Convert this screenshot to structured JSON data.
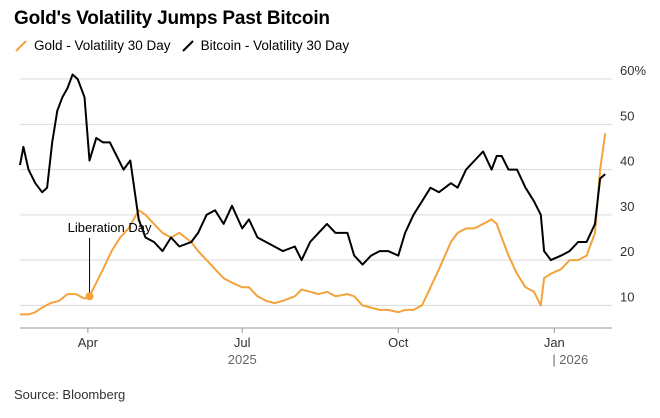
{
  "title": "Gold's Volatility Jumps Past Bitcoin",
  "source": "Source: Bloomberg",
  "colors": {
    "gold": "#f3a23c",
    "bitcoin": "#000000",
    "grid": "#d9d9d9"
  },
  "legend": [
    {
      "label": "Gold - Volatility 30 Day",
      "color": "#f3a23c"
    },
    {
      "label": "Bitcoin - Volatility 30 Day",
      "color": "#000000"
    }
  ],
  "chart_data": {
    "type": "line",
    "title": "Gold's Volatility Jumps Past Bitcoin",
    "xlabel": "",
    "ylabel": "",
    "x_range": [
      "2025-02-20",
      "2026-02-04"
    ],
    "ylim": [
      5,
      62
    ],
    "y_ticks": [
      10,
      20,
      30,
      40,
      50,
      60
    ],
    "y_tick_labels": [
      "10",
      "20",
      "30",
      "40",
      "50",
      "60%"
    ],
    "y_axis_position": "right",
    "grid": "horizontal",
    "legend_position": "top-left",
    "x_ticks": [
      {
        "date": "2025-04-01",
        "label": "Apr"
      },
      {
        "date": "2025-07-01",
        "label": "Jul"
      },
      {
        "date": "2025-10-01",
        "label": "Oct"
      },
      {
        "date": "2026-01-01",
        "label": "Jan"
      }
    ],
    "year_labels": [
      {
        "date": "2025-07-01",
        "label": "2025"
      },
      {
        "date": "2026-01-01",
        "label": "| 2026"
      }
    ],
    "annotations": [
      {
        "text": "Liberation Day",
        "x": "2025-04-02",
        "y": 12
      }
    ],
    "series": [
      {
        "name": "Gold - Volatility 30 Day",
        "color": "#f3a23c",
        "points": [
          [
            "2025-02-20",
            8
          ],
          [
            "2025-02-25",
            8
          ],
          [
            "2025-03-01",
            8.5
          ],
          [
            "2025-03-05",
            9.5
          ],
          [
            "2025-03-10",
            10.5
          ],
          [
            "2025-03-15",
            11
          ],
          [
            "2025-03-20",
            12.5
          ],
          [
            "2025-03-25",
            12.5
          ],
          [
            "2025-03-30",
            11.5
          ],
          [
            "2025-04-02",
            12
          ],
          [
            "2025-04-06",
            15
          ],
          [
            "2025-04-10",
            18
          ],
          [
            "2025-04-15",
            22
          ],
          [
            "2025-04-20",
            25
          ],
          [
            "2025-04-25",
            27
          ],
          [
            "2025-05-01",
            31
          ],
          [
            "2025-05-05",
            30
          ],
          [
            "2025-05-10",
            28
          ],
          [
            "2025-05-15",
            26
          ],
          [
            "2025-05-20",
            25
          ],
          [
            "2025-05-25",
            26
          ],
          [
            "2025-06-01",
            24
          ],
          [
            "2025-06-05",
            22
          ],
          [
            "2025-06-10",
            20
          ],
          [
            "2025-06-15",
            18
          ],
          [
            "2025-06-20",
            16
          ],
          [
            "2025-06-25",
            15
          ],
          [
            "2025-07-01",
            14
          ],
          [
            "2025-07-05",
            14
          ],
          [
            "2025-07-10",
            12
          ],
          [
            "2025-07-15",
            11
          ],
          [
            "2025-07-20",
            10.5
          ],
          [
            "2025-07-25",
            11
          ],
          [
            "2025-08-01",
            12
          ],
          [
            "2025-08-05",
            13.5
          ],
          [
            "2025-08-10",
            13
          ],
          [
            "2025-08-15",
            12.5
          ],
          [
            "2025-08-20",
            13
          ],
          [
            "2025-08-25",
            12
          ],
          [
            "2025-09-01",
            12.5
          ],
          [
            "2025-09-05",
            12
          ],
          [
            "2025-09-10",
            10
          ],
          [
            "2025-09-15",
            9.5
          ],
          [
            "2025-09-20",
            9
          ],
          [
            "2025-09-25",
            9
          ],
          [
            "2025-10-01",
            8.5
          ],
          [
            "2025-10-05",
            9
          ],
          [
            "2025-10-10",
            9
          ],
          [
            "2025-10-15",
            10
          ],
          [
            "2025-10-20",
            14
          ],
          [
            "2025-10-25",
            18
          ],
          [
            "2025-11-01",
            24
          ],
          [
            "2025-11-05",
            26
          ],
          [
            "2025-11-10",
            27
          ],
          [
            "2025-11-15",
            27
          ],
          [
            "2025-11-20",
            28
          ],
          [
            "2025-11-25",
            29
          ],
          [
            "2025-11-28",
            28
          ],
          [
            "2025-12-01",
            25
          ],
          [
            "2025-12-05",
            21
          ],
          [
            "2025-12-10",
            17
          ],
          [
            "2025-12-15",
            14
          ],
          [
            "2025-12-20",
            13
          ],
          [
            "2025-12-24",
            10
          ],
          [
            "2025-12-26",
            16
          ],
          [
            "2025-12-30",
            17
          ],
          [
            "2026-01-05",
            18
          ],
          [
            "2026-01-10",
            20
          ],
          [
            "2026-01-15",
            20
          ],
          [
            "2026-01-20",
            21
          ],
          [
            "2026-01-25",
            26
          ],
          [
            "2026-01-28",
            40
          ],
          [
            "2026-01-31",
            48
          ]
        ]
      },
      {
        "name": "Bitcoin - Volatility 30 Day",
        "color": "#000000",
        "points": [
          [
            "2025-02-20",
            41
          ],
          [
            "2025-02-22",
            45
          ],
          [
            "2025-02-25",
            40
          ],
          [
            "2025-03-01",
            37
          ],
          [
            "2025-03-05",
            35
          ],
          [
            "2025-03-08",
            36
          ],
          [
            "2025-03-11",
            46
          ],
          [
            "2025-03-14",
            53
          ],
          [
            "2025-03-17",
            56
          ],
          [
            "2025-03-20",
            58
          ],
          [
            "2025-03-23",
            61
          ],
          [
            "2025-03-26",
            60
          ],
          [
            "2025-03-30",
            56
          ],
          [
            "2025-04-02",
            42
          ],
          [
            "2025-04-06",
            47
          ],
          [
            "2025-04-10",
            46
          ],
          [
            "2025-04-14",
            46
          ],
          [
            "2025-04-18",
            43
          ],
          [
            "2025-04-22",
            40
          ],
          [
            "2025-04-26",
            42
          ],
          [
            "2025-05-01",
            29
          ],
          [
            "2025-05-05",
            25
          ],
          [
            "2025-05-10",
            24
          ],
          [
            "2025-05-15",
            22
          ],
          [
            "2025-05-20",
            25
          ],
          [
            "2025-05-25",
            23
          ],
          [
            "2025-06-01",
            24
          ],
          [
            "2025-06-05",
            26
          ],
          [
            "2025-06-10",
            30
          ],
          [
            "2025-06-15",
            31
          ],
          [
            "2025-06-20",
            28
          ],
          [
            "2025-06-25",
            32
          ],
          [
            "2025-07-01",
            27
          ],
          [
            "2025-07-05",
            29
          ],
          [
            "2025-07-10",
            25
          ],
          [
            "2025-07-15",
            24
          ],
          [
            "2025-07-20",
            23
          ],
          [
            "2025-07-25",
            22
          ],
          [
            "2025-08-01",
            23
          ],
          [
            "2025-08-05",
            20
          ],
          [
            "2025-08-10",
            24
          ],
          [
            "2025-08-15",
            26
          ],
          [
            "2025-08-20",
            28
          ],
          [
            "2025-08-25",
            26
          ],
          [
            "2025-09-01",
            26
          ],
          [
            "2025-09-05",
            21
          ],
          [
            "2025-09-10",
            19
          ],
          [
            "2025-09-15",
            21
          ],
          [
            "2025-09-20",
            22
          ],
          [
            "2025-09-25",
            22
          ],
          [
            "2025-10-01",
            21
          ],
          [
            "2025-10-05",
            26
          ],
          [
            "2025-10-10",
            30
          ],
          [
            "2025-10-15",
            33
          ],
          [
            "2025-10-20",
            36
          ],
          [
            "2025-10-25",
            35
          ],
          [
            "2025-11-01",
            37
          ],
          [
            "2025-11-05",
            36
          ],
          [
            "2025-11-10",
            40
          ],
          [
            "2025-11-15",
            42
          ],
          [
            "2025-11-20",
            44
          ],
          [
            "2025-11-25",
            40
          ],
          [
            "2025-11-28",
            43
          ],
          [
            "2025-12-01",
            43
          ],
          [
            "2025-12-05",
            40
          ],
          [
            "2025-12-10",
            40
          ],
          [
            "2025-12-15",
            36
          ],
          [
            "2025-12-20",
            33
          ],
          [
            "2025-12-24",
            30
          ],
          [
            "2025-12-26",
            22
          ],
          [
            "2025-12-30",
            20
          ],
          [
            "2026-01-05",
            21
          ],
          [
            "2026-01-10",
            22
          ],
          [
            "2026-01-15",
            24
          ],
          [
            "2026-01-20",
            24
          ],
          [
            "2026-01-25",
            28
          ],
          [
            "2026-01-28",
            38
          ],
          [
            "2026-01-31",
            39
          ]
        ]
      }
    ]
  }
}
